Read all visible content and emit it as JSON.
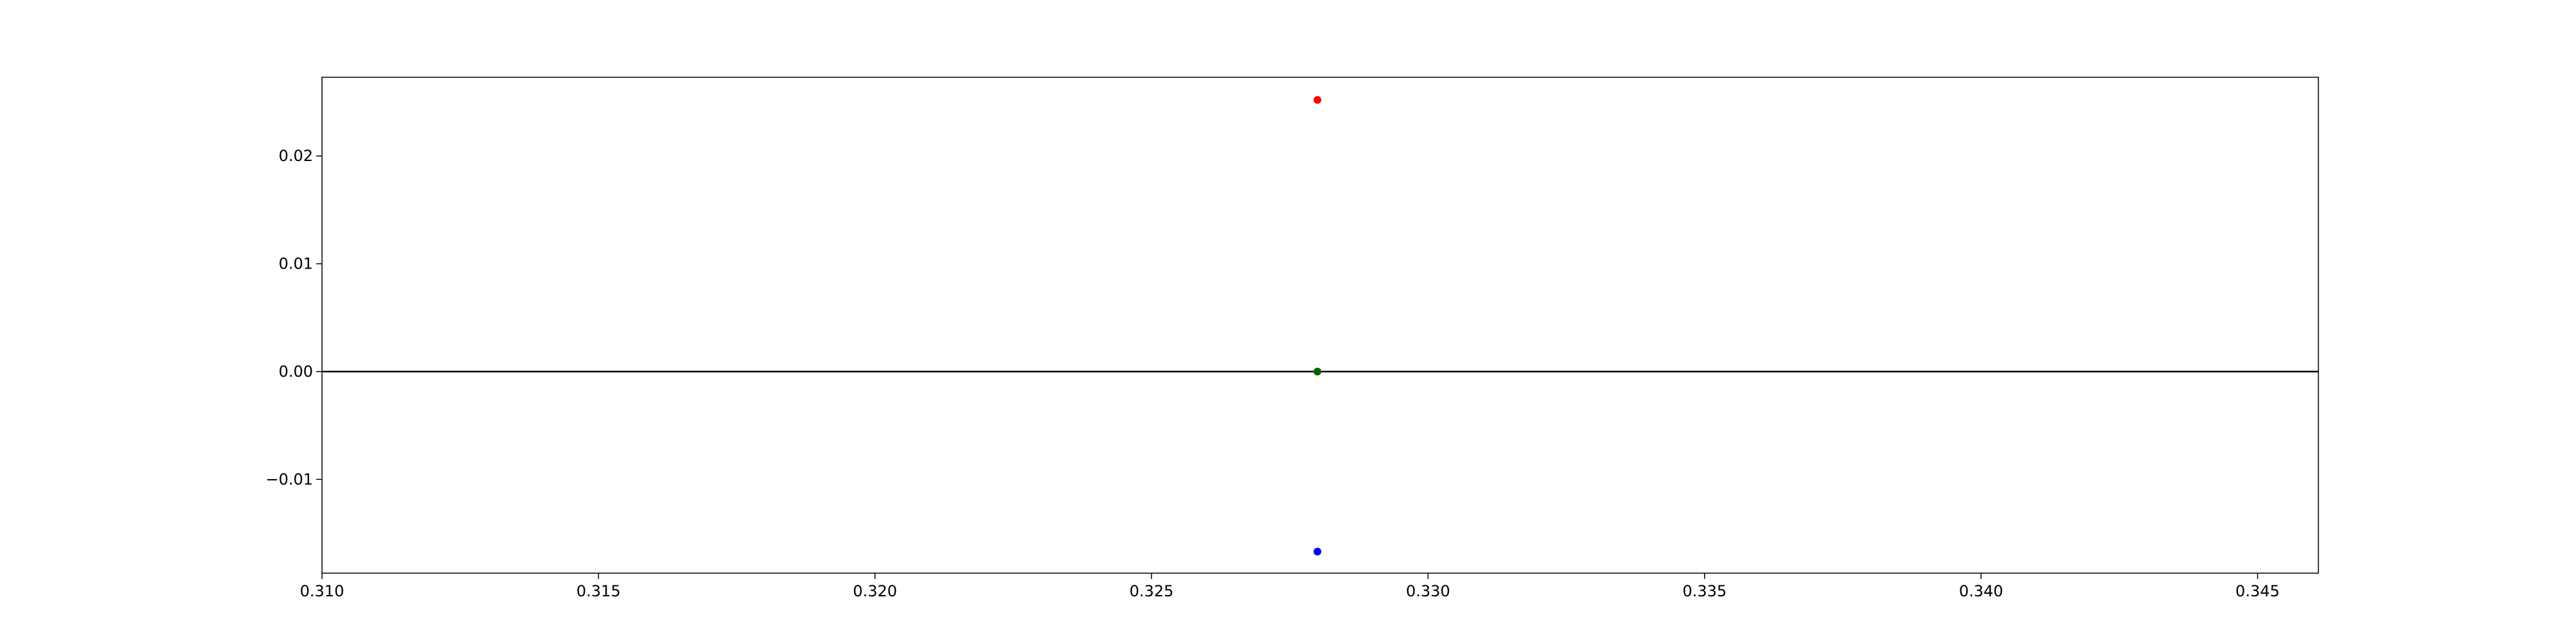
{
  "chart_data": {
    "type": "scatter",
    "title": "",
    "xlabel": "",
    "ylabel": "",
    "xlim": [
      0.31,
      0.3461
    ],
    "ylim": [
      -0.0187,
      0.0273
    ],
    "grid": false,
    "legend": "none",
    "x_ticks": [
      0.31,
      0.315,
      0.32,
      0.325,
      0.33,
      0.335,
      0.34,
      0.345
    ],
    "x_tick_labels": [
      "0.310",
      "0.315",
      "0.320",
      "0.325",
      "0.330",
      "0.335",
      "0.340",
      "0.345"
    ],
    "y_ticks": [
      -0.01,
      0.0,
      0.01,
      0.02
    ],
    "y_tick_labels": [
      "−0.01",
      "0.00",
      "0.01",
      "0.02"
    ],
    "reference_line": {
      "y": 0.0,
      "color": "#000000"
    },
    "points": [
      {
        "x": 0.328,
        "y": 0.0252,
        "color": "#ff0000"
      },
      {
        "x": 0.328,
        "y": 0.0,
        "color": "#006400"
      },
      {
        "x": 0.328,
        "y": -0.0167,
        "color": "#0000ff"
      }
    ]
  }
}
